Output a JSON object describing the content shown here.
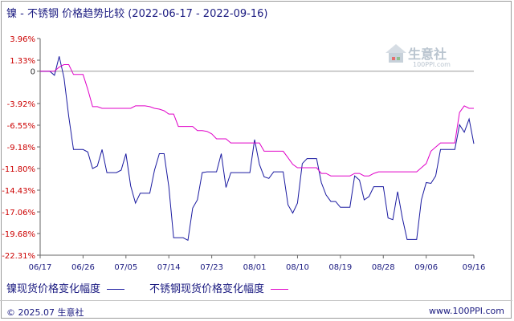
{
  "header": {
    "title": "镍 - 不锈钢 价格趋势比较",
    "date_range": "(2022-06-17 - 2022-09-16)"
  },
  "legend": {
    "nickel_label": "镍现货价格变化幅度",
    "stainless_label": "不锈钢现货价格变化幅度"
  },
  "footer": {
    "copyright": "© 2025.07 生意社",
    "site": "www.100PPI.com"
  },
  "watermark": {
    "brand": "生意社",
    "domain": "100PPI.com"
  },
  "colors": {
    "nickel": "#1a1aa0",
    "stainless": "#e000c8",
    "axis": "#666666",
    "zero_line": "#9a9a9a"
  },
  "chart_data": {
    "type": "line",
    "title": "镍 - 不锈钢 价格趋势比较",
    "y_tick_labels": [
      "3.96%",
      "1.33%",
      "0",
      "-3.92%",
      "-6.55%",
      "-9.18%",
      "-11.80%",
      "-14.43%",
      "-17.06%",
      "-19.68%",
      "-22.31%"
    ],
    "y_ticks": [
      3.96,
      1.33,
      0,
      -3.92,
      -6.55,
      -9.18,
      -11.8,
      -14.43,
      -17.06,
      -19.68,
      -22.31
    ],
    "ylim": [
      -22.31,
      3.96
    ],
    "x_tick_labels": [
      "06/17",
      "06/26",
      "07/05",
      "07/14",
      "07/23",
      "08/01",
      "08/10",
      "08/19",
      "08/28",
      "09/06",
      "09/16"
    ],
    "x_tick_days": [
      0,
      9,
      18,
      27,
      36,
      45,
      54,
      63,
      72,
      81,
      91
    ],
    "xlim": [
      0,
      91
    ],
    "series": [
      {
        "name": "镍现货价格变化幅度",
        "color": "#1a1aa0",
        "points": [
          [
            0,
            0
          ],
          [
            2,
            0
          ],
          [
            3,
            -0.5
          ],
          [
            4,
            1.8
          ],
          [
            5,
            -0.8
          ],
          [
            6,
            -5.5
          ],
          [
            7,
            -9.5
          ],
          [
            8,
            -9.5
          ],
          [
            9,
            -9.5
          ],
          [
            10,
            -9.8
          ],
          [
            11,
            -11.8
          ],
          [
            12,
            -11.5
          ],
          [
            13,
            -9.5
          ],
          [
            14,
            -12.3
          ],
          [
            15,
            -12.3
          ],
          [
            16,
            -12.3
          ],
          [
            17,
            -12.0
          ],
          [
            18,
            -10.0
          ],
          [
            19,
            -13.9
          ],
          [
            20,
            -16.0
          ],
          [
            21,
            -14.8
          ],
          [
            22,
            -14.8
          ],
          [
            23,
            -14.8
          ],
          [
            24,
            -12.0
          ],
          [
            25,
            -10.0
          ],
          [
            26,
            -10.0
          ],
          [
            27,
            -14.0
          ],
          [
            28,
            -20.2
          ],
          [
            29,
            -20.2
          ],
          [
            30,
            -20.2
          ],
          [
            31,
            -20.5
          ],
          [
            32,
            -16.6
          ],
          [
            33,
            -15.6
          ],
          [
            34,
            -12.3
          ],
          [
            35,
            -12.2
          ],
          [
            36,
            -12.2
          ],
          [
            37,
            -12.2
          ],
          [
            38,
            -10.0
          ],
          [
            39,
            -14.1
          ],
          [
            40,
            -12.3
          ],
          [
            41,
            -12.3
          ],
          [
            42,
            -12.3
          ],
          [
            43,
            -12.3
          ],
          [
            44,
            -12.3
          ],
          [
            45,
            -8.3
          ],
          [
            46,
            -11.3
          ],
          [
            47,
            -12.8
          ],
          [
            48,
            -13.0
          ],
          [
            49,
            -12.2
          ],
          [
            50,
            -12.2
          ],
          [
            51,
            -12.2
          ],
          [
            52,
            -16.2
          ],
          [
            53,
            -17.2
          ],
          [
            54,
            -16.0
          ],
          [
            55,
            -11.2
          ],
          [
            56,
            -10.6
          ],
          [
            57,
            -10.6
          ],
          [
            58,
            -10.6
          ],
          [
            59,
            -13.5
          ],
          [
            60,
            -15.0
          ],
          [
            61,
            -15.8
          ],
          [
            62,
            -15.8
          ],
          [
            63,
            -16.5
          ],
          [
            64,
            -16.5
          ],
          [
            65,
            -16.5
          ],
          [
            66,
            -12.7
          ],
          [
            67,
            -13.2
          ],
          [
            68,
            -15.6
          ],
          [
            69,
            -15.2
          ],
          [
            70,
            -14.0
          ],
          [
            71,
            -14.0
          ],
          [
            72,
            -14.0
          ],
          [
            73,
            -17.8
          ],
          [
            74,
            -18.0
          ],
          [
            75,
            -14.6
          ],
          [
            76,
            -17.8
          ],
          [
            77,
            -20.4
          ],
          [
            78,
            -20.4
          ],
          [
            79,
            -20.4
          ],
          [
            80,
            -15.6
          ],
          [
            81,
            -13.5
          ],
          [
            82,
            -13.6
          ],
          [
            83,
            -12.7
          ],
          [
            84,
            -9.5
          ],
          [
            85,
            -9.5
          ],
          [
            86,
            -9.5
          ],
          [
            87,
            -9.5
          ],
          [
            88,
            -6.5
          ],
          [
            89,
            -7.4
          ],
          [
            90,
            -5.8
          ],
          [
            91,
            -8.8
          ]
        ]
      },
      {
        "name": "不锈钢现货价格变化幅度",
        "color": "#e000c8",
        "points": [
          [
            0,
            0
          ],
          [
            3,
            0
          ],
          [
            4,
            0.5
          ],
          [
            5,
            0.8
          ],
          [
            6,
            0.8
          ],
          [
            7,
            -0.4
          ],
          [
            8,
            -0.4
          ],
          [
            9,
            -0.4
          ],
          [
            10,
            -2.2
          ],
          [
            11,
            -4.3
          ],
          [
            12,
            -4.3
          ],
          [
            13,
            -4.5
          ],
          [
            14,
            -4.5
          ],
          [
            15,
            -4.5
          ],
          [
            16,
            -4.5
          ],
          [
            17,
            -4.5
          ],
          [
            18,
            -4.5
          ],
          [
            19,
            -4.5
          ],
          [
            20,
            -4.2
          ],
          [
            21,
            -4.2
          ],
          [
            22,
            -4.2
          ],
          [
            23,
            -4.3
          ],
          [
            24,
            -4.5
          ],
          [
            25,
            -4.6
          ],
          [
            26,
            -4.8
          ],
          [
            27,
            -5.2
          ],
          [
            28,
            -5.2
          ],
          [
            29,
            -6.7
          ],
          [
            30,
            -6.7
          ],
          [
            31,
            -6.7
          ],
          [
            32,
            -6.7
          ],
          [
            33,
            -7.2
          ],
          [
            34,
            -7.2
          ],
          [
            35,
            -7.3
          ],
          [
            36,
            -7.6
          ],
          [
            37,
            -8.2
          ],
          [
            38,
            -8.2
          ],
          [
            39,
            -8.2
          ],
          [
            40,
            -8.7
          ],
          [
            41,
            -8.7
          ],
          [
            42,
            -8.7
          ],
          [
            43,
            -8.7
          ],
          [
            44,
            -8.7
          ],
          [
            45,
            -8.7
          ],
          [
            46,
            -8.7
          ],
          [
            47,
            -9.7
          ],
          [
            48,
            -9.7
          ],
          [
            49,
            -9.7
          ],
          [
            50,
            -9.7
          ],
          [
            51,
            -9.7
          ],
          [
            52,
            -10.5
          ],
          [
            53,
            -11.3
          ],
          [
            54,
            -11.7
          ],
          [
            55,
            -11.7
          ],
          [
            56,
            -11.7
          ],
          [
            57,
            -11.7
          ],
          [
            58,
            -11.7
          ],
          [
            59,
            -12.4
          ],
          [
            60,
            -12.4
          ],
          [
            61,
            -12.7
          ],
          [
            62,
            -12.7
          ],
          [
            63,
            -12.7
          ],
          [
            64,
            -12.7
          ],
          [
            65,
            -12.7
          ],
          [
            66,
            -12.4
          ],
          [
            67,
            -12.4
          ],
          [
            68,
            -12.7
          ],
          [
            69,
            -12.7
          ],
          [
            70,
            -12.4
          ],
          [
            71,
            -12.2
          ],
          [
            72,
            -12.2
          ],
          [
            73,
            -12.2
          ],
          [
            74,
            -12.2
          ],
          [
            75,
            -12.2
          ],
          [
            76,
            -12.2
          ],
          [
            77,
            -12.2
          ],
          [
            78,
            -12.2
          ],
          [
            79,
            -12.2
          ],
          [
            80,
            -11.7
          ],
          [
            81,
            -11.2
          ],
          [
            82,
            -9.7
          ],
          [
            83,
            -9.2
          ],
          [
            84,
            -8.7
          ],
          [
            85,
            -8.7
          ],
          [
            86,
            -8.7
          ],
          [
            87,
            -8.7
          ],
          [
            88,
            -5.0
          ],
          [
            89,
            -4.2
          ],
          [
            90,
            -4.5
          ],
          [
            91,
            -4.5
          ]
        ]
      }
    ],
    "grid": false,
    "legend_position": "bottom-left"
  }
}
